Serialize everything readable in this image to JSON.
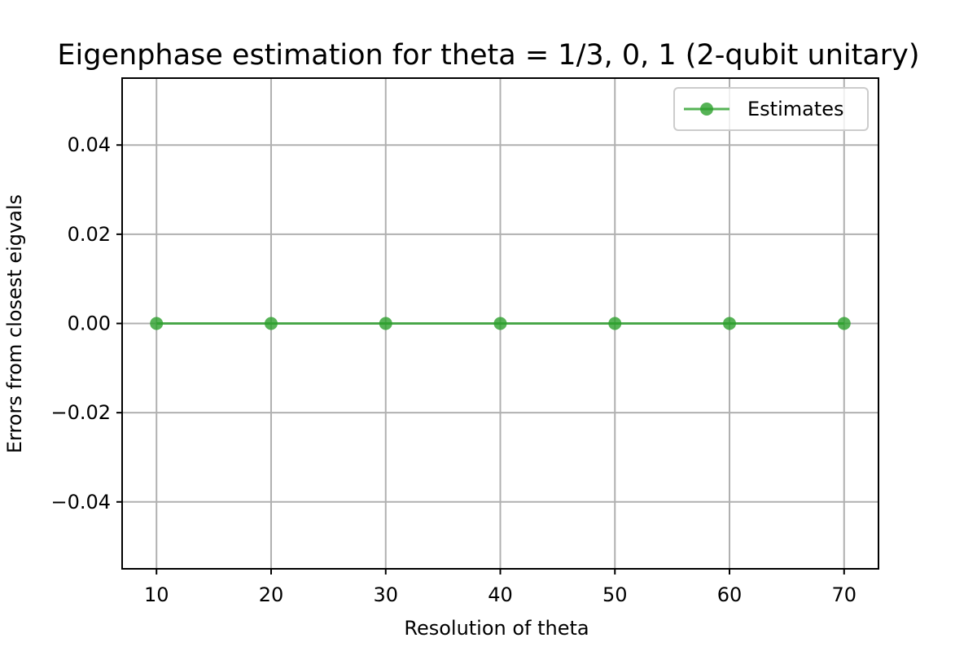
{
  "chart_data": {
    "type": "line",
    "title": "Eigenphase estimation for theta = 1/3, 0, 1 (2-qubit unitary)",
    "xlabel": "Resolution of theta",
    "ylabel": "Errors from closest eigvals",
    "xlim": [
      7,
      73
    ],
    "ylim": [
      -0.055,
      0.055
    ],
    "x_ticks": [
      10,
      20,
      30,
      40,
      50,
      60,
      70
    ],
    "x_tick_labels": [
      "10",
      "20",
      "30",
      "40",
      "50",
      "60",
      "70"
    ],
    "y_ticks": [
      0.04,
      0.02,
      0.0,
      -0.02,
      -0.04
    ],
    "y_tick_labels": [
      "0.04",
      "0.02",
      "0.00",
      "−0.02",
      "−0.04"
    ],
    "grid": true,
    "legend_position": "top-right",
    "series": [
      {
        "name": "Estimates",
        "color": "#2ca02c",
        "marker": "circle",
        "x": [
          10,
          20,
          30,
          40,
          50,
          60,
          70
        ],
        "y": [
          0,
          0,
          0,
          0,
          0,
          0,
          0
        ]
      }
    ]
  }
}
